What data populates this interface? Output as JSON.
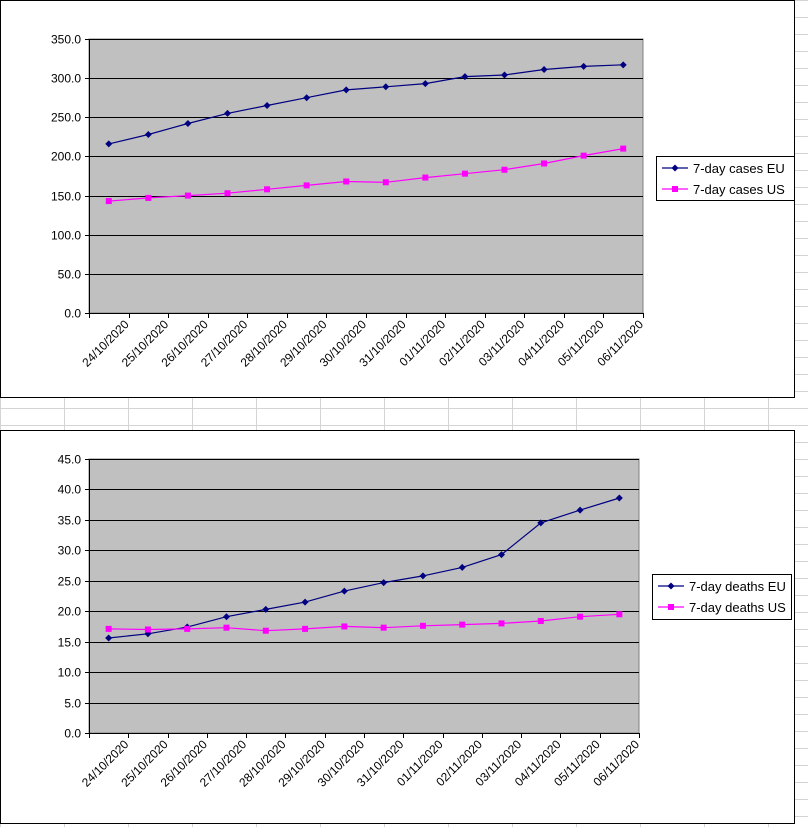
{
  "chart_data": [
    {
      "type": "line",
      "title": "",
      "xlabel": "",
      "ylabel": "",
      "ylim": [
        0,
        350
      ],
      "ystep": 50,
      "grid": true,
      "legend_position": "right",
      "categories": [
        "24/10/2020",
        "25/10/2020",
        "26/10/2020",
        "27/10/2020",
        "28/10/2020",
        "29/10/2020",
        "30/10/2020",
        "31/10/2020",
        "01/11/2020",
        "02/11/2020",
        "03/11/2020",
        "04/11/2020",
        "05/11/2020",
        "06/11/2020"
      ],
      "y_tick_labels": [
        "0.0",
        "50.0",
        "100.0",
        "150.0",
        "200.0",
        "250.0",
        "300.0",
        "350.0"
      ],
      "series": [
        {
          "name": "7-day cases EU",
          "color": "#000080",
          "marker": "diamond",
          "values": [
            216,
            228,
            242,
            255,
            265,
            275,
            285,
            289,
            293,
            302,
            304,
            311,
            315,
            317
          ]
        },
        {
          "name": "7-day cases US",
          "color": "#FF00FF",
          "marker": "square",
          "values": [
            143,
            147,
            150,
            153,
            158,
            163,
            168,
            167,
            173,
            178,
            183,
            191,
            201,
            210
          ]
        }
      ]
    },
    {
      "type": "line",
      "title": "",
      "xlabel": "",
      "ylabel": "",
      "ylim": [
        0,
        45
      ],
      "ystep": 5,
      "grid": true,
      "legend_position": "right",
      "categories": [
        "24/10/2020",
        "25/10/2020",
        "26/10/2020",
        "27/10/2020",
        "28/10/2020",
        "29/10/2020",
        "30/10/2020",
        "31/10/2020",
        "01/11/2020",
        "02/11/2020",
        "03/11/2020",
        "04/11/2020",
        "05/11/2020",
        "06/11/2020"
      ],
      "y_tick_labels": [
        "0.0",
        "5.0",
        "10.0",
        "15.0",
        "20.0",
        "25.0",
        "30.0",
        "35.0",
        "40.0",
        "45.0"
      ],
      "series": [
        {
          "name": "7-day deaths EU",
          "color": "#000080",
          "marker": "diamond",
          "values": [
            15.6,
            16.3,
            17.4,
            19.1,
            20.3,
            21.5,
            23.3,
            24.7,
            25.8,
            27.2,
            29.3,
            34.5,
            36.6,
            38.6
          ]
        },
        {
          "name": "7-day deaths US",
          "color": "#FF00FF",
          "marker": "square",
          "values": [
            17.1,
            17.0,
            17.1,
            17.3,
            16.8,
            17.1,
            17.5,
            17.3,
            17.6,
            17.8,
            18.0,
            18.4,
            19.1,
            19.5
          ]
        }
      ]
    }
  ],
  "theme": {
    "plot_bg": "#C0C0C0",
    "gridline": "#000000",
    "axis": "#000000"
  }
}
